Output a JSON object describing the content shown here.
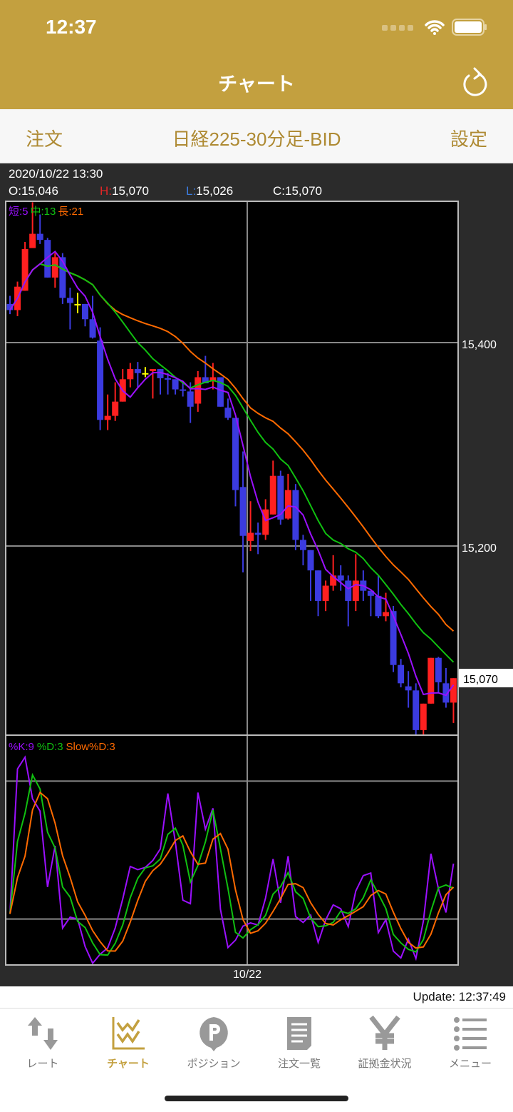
{
  "status_bar": {
    "time": "12:37"
  },
  "header": {
    "title": "チャート",
    "refresh_icon": "refresh-icon"
  },
  "subheader": {
    "left": "注文",
    "title": "日経225-30分足-BID",
    "right": "設定"
  },
  "ohlc_info": {
    "datetime": "2020/10/22 13:30",
    "open": "O:15,046",
    "high_label": "H:",
    "high": "15,070",
    "low_label": "L:",
    "low": "15,026",
    "close": "C:15,070"
  },
  "legend": {
    "ma_short": "短:5",
    "ma_mid": "中:13",
    "ma_long": "長:21",
    "k": "%K:9",
    "d": "%D:3",
    "slowd": "Slow%D:3"
  },
  "axis": {
    "y_ticks": [
      "15,400",
      "15,200"
    ],
    "last_price": "15,070",
    "x_tick": "10/22"
  },
  "update": "Update: 12:37:49",
  "colors": {
    "up": "#FF2020",
    "down": "#3B3BE0",
    "doji": "#FFFF00",
    "ma_short": "#9B10FF",
    "ma_mid": "#10C010",
    "ma_long": "#FF6A00",
    "header": "#C3A03F"
  },
  "chart_data": {
    "type": "candlestick",
    "ylim": [
      15014,
      15539
    ],
    "y_ticks": [
      15400,
      15200
    ],
    "ma_periods": [
      5,
      13,
      21
    ],
    "stoch": {
      "k": 9,
      "d": 3,
      "slowd": 3,
      "ylim": [
        0,
        100
      ],
      "lines": [
        80,
        20
      ]
    },
    "candles_ohlc": [
      [
        15438,
        15446,
        15428,
        15432
      ],
      [
        15432,
        15460,
        15426,
        15455
      ],
      [
        15451,
        15499,
        15451,
        15492
      ],
      [
        15493,
        15538,
        15493,
        15507
      ],
      [
        15507,
        15526,
        15497,
        15501
      ],
      [
        15501,
        15503,
        15464,
        15464
      ],
      [
        15464,
        15488,
        15454,
        15484
      ],
      [
        15484,
        15488,
        15438,
        15444
      ],
      [
        15444,
        15454,
        15413,
        15439
      ],
      [
        15438,
        15449,
        15429,
        15438
      ],
      [
        15438,
        15438,
        15416,
        15423
      ],
      [
        15423,
        15446,
        15404,
        15405
      ],
      [
        15402,
        15415,
        15314,
        15324
      ],
      [
        15324,
        15349,
        15314,
        15328
      ],
      [
        15328,
        15361,
        15323,
        15342
      ],
      [
        15342,
        15374,
        15342,
        15364
      ],
      [
        15364,
        15380,
        15356,
        15374
      ],
      [
        15374,
        15381,
        15356,
        15370
      ],
      [
        15370,
        15376,
        15366,
        15370
      ],
      [
        15372,
        15374,
        15345,
        15374
      ],
      [
        15374,
        15374,
        15349,
        15365
      ],
      [
        15365,
        15370,
        15349,
        15364
      ],
      [
        15364,
        15364,
        15349,
        15354
      ],
      [
        15354,
        15360,
        15347,
        15353
      ],
      [
        15352,
        15361,
        15321,
        15337
      ],
      [
        15340,
        15372,
        15332,
        15366
      ],
      [
        15366,
        15387,
        15360,
        15360
      ],
      [
        15362,
        15380,
        15354,
        15366
      ],
      [
        15366,
        15366,
        15337,
        15337
      ],
      [
        15336,
        15345,
        15324,
        15326
      ],
      [
        15326,
        15326,
        15239,
        15255
      ],
      [
        15258,
        15293,
        15174,
        15210
      ],
      [
        15205,
        15244,
        15195,
        15213
      ],
      [
        15213,
        15223,
        15192,
        15211
      ],
      [
        15211,
        15246,
        15206,
        15236
      ],
      [
        15231,
        15284,
        15231,
        15269
      ],
      [
        15269,
        15274,
        15221,
        15226
      ],
      [
        15227,
        15271,
        15226,
        15255
      ],
      [
        15255,
        15261,
        15196,
        15206
      ],
      [
        15206,
        15211,
        15181,
        15196
      ],
      [
        15196,
        15196,
        15146,
        15176
      ],
      [
        15176,
        15176,
        15131,
        15146
      ],
      [
        15146,
        15166,
        15136,
        15161
      ],
      [
        15161,
        15191,
        15156,
        15171
      ],
      [
        15171,
        15181,
        15156,
        15166
      ],
      [
        15166,
        15171,
        15121,
        15146
      ],
      [
        15146,
        15192,
        15136,
        15166
      ],
      [
        15166,
        15176,
        15146,
        15156
      ],
      [
        15156,
        15156,
        15131,
        15151
      ],
      [
        15151,
        15171,
        15129,
        15131
      ],
      [
        15131,
        15154,
        15126,
        15135
      ],
      [
        15136,
        15141,
        15076,
        15083
      ],
      [
        15083,
        15089,
        15061,
        15065
      ],
      [
        15062,
        15077,
        15041,
        15058
      ],
      [
        15058,
        15065,
        15014,
        15019
      ],
      [
        15019,
        15045,
        15014,
        15045
      ],
      [
        15045,
        15090,
        15045,
        15090
      ],
      [
        15090,
        15091,
        15055,
        15066
      ],
      [
        15065,
        15080,
        15041,
        15046
      ],
      [
        15046,
        15070,
        15026,
        15070
      ]
    ]
  },
  "tabs": [
    {
      "label": "レート",
      "icon": "rate-arrows-icon"
    },
    {
      "label": "チャート",
      "icon": "chart-icon",
      "active": true
    },
    {
      "label": "ポジション",
      "icon": "position-pin-icon"
    },
    {
      "label": "注文一覧",
      "icon": "document-icon"
    },
    {
      "label": "証拠金状況",
      "icon": "yen-icon"
    },
    {
      "label": "メニュー",
      "icon": "menu-list-icon"
    }
  ]
}
